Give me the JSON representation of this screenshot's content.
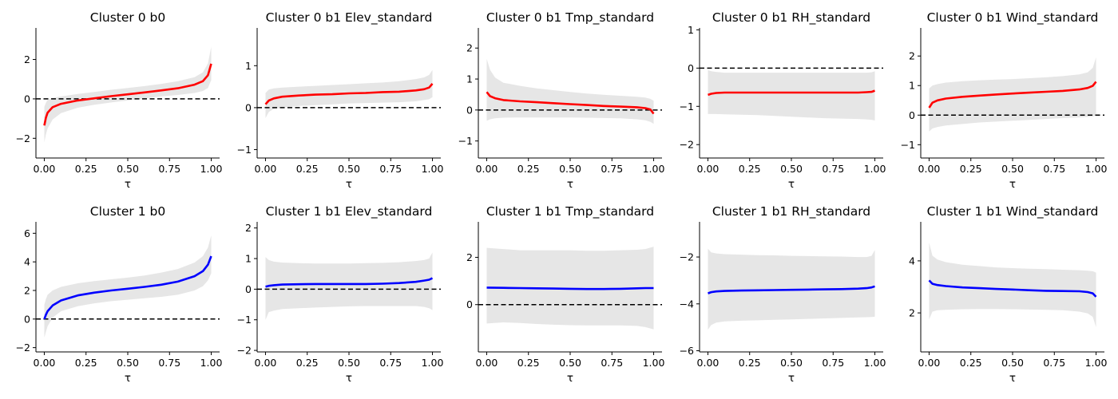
{
  "chart_data": [
    {
      "type": "line",
      "title": "Cluster 0 b0",
      "xlabel": "τ",
      "ylabel": "",
      "color": "#ff0000",
      "xlim": [
        -0.05,
        1.05
      ],
      "ylim": [
        -3.0,
        3.6
      ],
      "yticks": [
        "−2",
        "0",
        "2"
      ],
      "ytick_values": [
        -2,
        0,
        2
      ],
      "xticks": [
        "0.00",
        "0.25",
        "0.50",
        "0.75",
        "1.00"
      ],
      "xtick_values": [
        0,
        0.25,
        0.5,
        0.75,
        1.0
      ],
      "reference_line": 0,
      "x": [
        0,
        0.01,
        0.02,
        0.05,
        0.1,
        0.2,
        0.3,
        0.4,
        0.5,
        0.6,
        0.7,
        0.8,
        0.9,
        0.95,
        0.98,
        1.0
      ],
      "y": [
        -1.35,
        -0.95,
        -0.7,
        -0.42,
        -0.25,
        -0.08,
        0.03,
        0.14,
        0.23,
        0.33,
        0.43,
        0.54,
        0.72,
        0.9,
        1.2,
        1.78
      ],
      "lower": [
        -2.2,
        -1.8,
        -1.5,
        -1.05,
        -0.72,
        -0.45,
        -0.3,
        -0.18,
        -0.08,
        0.02,
        0.12,
        0.2,
        0.3,
        0.4,
        0.55,
        0.95
      ],
      "upper": [
        -0.4,
        -0.2,
        -0.05,
        0.05,
        0.12,
        0.25,
        0.35,
        0.46,
        0.55,
        0.65,
        0.76,
        0.9,
        1.1,
        1.35,
        1.8,
        2.65
      ]
    },
    {
      "type": "line",
      "title": "Cluster 0 b1 Elev_standard",
      "xlabel": "τ",
      "ylabel": "",
      "color": "#ff0000",
      "xlim": [
        -0.05,
        1.05
      ],
      "ylim": [
        -1.2,
        1.9
      ],
      "yticks": [
        "−1",
        "0",
        "1"
      ],
      "ytick_values": [
        -1,
        0,
        1
      ],
      "xticks": [
        "0.00",
        "0.25",
        "0.50",
        "0.75",
        "1.00"
      ],
      "xtick_values": [
        0,
        0.25,
        0.5,
        0.75,
        1.0
      ],
      "reference_line": 0,
      "x": [
        0,
        0.02,
        0.05,
        0.1,
        0.2,
        0.3,
        0.4,
        0.5,
        0.6,
        0.7,
        0.8,
        0.9,
        0.95,
        0.98,
        1.0
      ],
      "y": [
        0.08,
        0.17,
        0.22,
        0.26,
        0.29,
        0.31,
        0.32,
        0.34,
        0.35,
        0.37,
        0.38,
        0.41,
        0.44,
        0.48,
        0.57
      ],
      "lower": [
        -0.25,
        -0.1,
        -0.03,
        0.0,
        0.04,
        0.06,
        0.08,
        0.1,
        0.11,
        0.12,
        0.13,
        0.15,
        0.18,
        0.2,
        0.25
      ],
      "upper": [
        0.35,
        0.43,
        0.46,
        0.48,
        0.5,
        0.52,
        0.54,
        0.56,
        0.58,
        0.6,
        0.63,
        0.68,
        0.72,
        0.78,
        0.9
      ]
    },
    {
      "type": "line",
      "title": "Cluster 0 b1 Tmp_standard",
      "xlabel": "τ",
      "ylabel": "",
      "color": "#ff0000",
      "xlim": [
        -0.05,
        1.05
      ],
      "ylim": [
        -1.55,
        2.65
      ],
      "yticks": [
        "−1",
        "0",
        "1",
        "2"
      ],
      "ytick_values": [
        -1,
        0,
        1,
        2
      ],
      "xticks": [
        "0.00",
        "0.25",
        "0.50",
        "0.75",
        "1.00"
      ],
      "xtick_values": [
        0,
        0.25,
        0.5,
        0.75,
        1.0
      ],
      "reference_line": 0,
      "x": [
        0,
        0.02,
        0.05,
        0.1,
        0.2,
        0.3,
        0.4,
        0.5,
        0.6,
        0.7,
        0.8,
        0.9,
        0.95,
        0.98,
        1.0
      ],
      "y": [
        0.58,
        0.45,
        0.38,
        0.32,
        0.28,
        0.25,
        0.22,
        0.19,
        0.16,
        0.13,
        0.11,
        0.09,
        0.06,
        0.02,
        -0.12
      ],
      "lower": [
        -0.35,
        -0.3,
        -0.27,
        -0.25,
        -0.24,
        -0.24,
        -0.24,
        -0.24,
        -0.25,
        -0.26,
        -0.27,
        -0.3,
        -0.33,
        -0.38,
        -0.45
      ],
      "upper": [
        1.65,
        1.3,
        1.05,
        0.88,
        0.78,
        0.7,
        0.64,
        0.58,
        0.53,
        0.49,
        0.46,
        0.43,
        0.4,
        0.36,
        0.3
      ]
    },
    {
      "type": "line",
      "title": "Cluster 0 b1 RH_standard",
      "xlabel": "τ",
      "ylabel": "",
      "color": "#ff0000",
      "xlim": [
        -0.05,
        1.05
      ],
      "ylim": [
        -2.35,
        1.05
      ],
      "yticks": [
        "−2",
        "−1",
        "0",
        "1"
      ],
      "ytick_values": [
        -2,
        -1,
        0,
        1
      ],
      "xticks": [
        "0.00",
        "0.25",
        "0.50",
        "0.75",
        "1.00"
      ],
      "xtick_values": [
        0,
        0.25,
        0.5,
        0.75,
        1.0
      ],
      "reference_line": 0,
      "x": [
        0,
        0.02,
        0.05,
        0.1,
        0.2,
        0.3,
        0.4,
        0.5,
        0.6,
        0.7,
        0.8,
        0.9,
        0.95,
        0.98,
        1.0
      ],
      "y": [
        -0.7,
        -0.67,
        -0.65,
        -0.64,
        -0.64,
        -0.64,
        -0.64,
        -0.64,
        -0.64,
        -0.64,
        -0.64,
        -0.64,
        -0.63,
        -0.62,
        -0.59
      ],
      "lower": [
        -1.2,
        -1.2,
        -1.2,
        -1.21,
        -1.22,
        -1.23,
        -1.25,
        -1.27,
        -1.29,
        -1.31,
        -1.32,
        -1.33,
        -1.34,
        -1.35,
        -1.37
      ],
      "upper": [
        -0.05,
        -0.08,
        -0.1,
        -0.12,
        -0.12,
        -0.12,
        -0.12,
        -0.12,
        -0.12,
        -0.12,
        -0.12,
        -0.12,
        -0.12,
        -0.11,
        -0.08
      ]
    },
    {
      "type": "line",
      "title": "Cluster 0 b1 Wind_standard",
      "xlabel": "τ",
      "ylabel": "",
      "color": "#ff0000",
      "xlim": [
        -0.05,
        1.05
      ],
      "ylim": [
        -1.45,
        2.95
      ],
      "yticks": [
        "−1",
        "0",
        "1",
        "2"
      ],
      "ytick_values": [
        -1,
        0,
        1,
        2
      ],
      "xticks": [
        "0.00",
        "0.25",
        "0.50",
        "0.75",
        "1.00"
      ],
      "xtick_values": [
        0,
        0.25,
        0.5,
        0.75,
        1.0
      ],
      "reference_line": 0,
      "x": [
        0,
        0.02,
        0.05,
        0.1,
        0.2,
        0.3,
        0.4,
        0.5,
        0.6,
        0.7,
        0.8,
        0.9,
        0.95,
        0.98,
        1.0
      ],
      "y": [
        0.25,
        0.42,
        0.5,
        0.56,
        0.62,
        0.66,
        0.7,
        0.73,
        0.76,
        0.79,
        0.82,
        0.87,
        0.92,
        0.99,
        1.13
      ],
      "lower": [
        -0.55,
        -0.45,
        -0.4,
        -0.35,
        -0.3,
        -0.25,
        -0.22,
        -0.19,
        -0.16,
        -0.13,
        -0.1,
        -0.08,
        -0.06,
        -0.05,
        0.0
      ],
      "upper": [
        0.9,
        1.0,
        1.05,
        1.1,
        1.15,
        1.18,
        1.2,
        1.22,
        1.25,
        1.28,
        1.32,
        1.38,
        1.45,
        1.6,
        1.95
      ]
    },
    {
      "type": "line",
      "title": "Cluster 1 b0",
      "xlabel": "τ",
      "ylabel": "",
      "color": "#0000ff",
      "xlim": [
        -0.05,
        1.05
      ],
      "ylim": [
        -2.3,
        6.8
      ],
      "yticks": [
        "−2",
        "0",
        "2",
        "4",
        "6"
      ],
      "ytick_values": [
        -2,
        0,
        2,
        4,
        6
      ],
      "xticks": [
        "0.00",
        "0.25",
        "0.50",
        "0.75",
        "1.00"
      ],
      "xtick_values": [
        0,
        0.25,
        0.5,
        0.75,
        1.0
      ],
      "reference_line": 0,
      "x": [
        0,
        0.01,
        0.02,
        0.05,
        0.1,
        0.2,
        0.3,
        0.4,
        0.5,
        0.6,
        0.7,
        0.8,
        0.9,
        0.95,
        0.98,
        1.0
      ],
      "y": [
        0.0,
        0.3,
        0.55,
        0.95,
        1.3,
        1.65,
        1.85,
        2.0,
        2.12,
        2.25,
        2.4,
        2.62,
        3.0,
        3.35,
        3.8,
        4.4
      ],
      "lower": [
        -1.3,
        -0.9,
        -0.5,
        0.1,
        0.55,
        0.9,
        1.1,
        1.25,
        1.35,
        1.45,
        1.55,
        1.7,
        2.0,
        2.3,
        2.7,
        3.2
      ],
      "upper": [
        1.0,
        1.4,
        1.7,
        2.0,
        2.25,
        2.5,
        2.65,
        2.78,
        2.9,
        3.05,
        3.25,
        3.5,
        3.95,
        4.4,
        5.0,
        5.85
      ]
    },
    {
      "type": "line",
      "title": "Cluster 1 b1 Elev_standard",
      "xlabel": "τ",
      "ylabel": "",
      "color": "#0000ff",
      "xlim": [
        -0.05,
        1.05
      ],
      "ylim": [
        -2.05,
        2.2
      ],
      "yticks": [
        "−2",
        "−1",
        "0",
        "1",
        "2"
      ],
      "ytick_values": [
        -2,
        -1,
        0,
        1,
        2
      ],
      "xticks": [
        "0.00",
        "0.25",
        "0.50",
        "0.75",
        "1.00"
      ],
      "xtick_values": [
        0,
        0.25,
        0.5,
        0.75,
        1.0
      ],
      "reference_line": 0,
      "x": [
        0,
        0.02,
        0.05,
        0.1,
        0.2,
        0.3,
        0.4,
        0.5,
        0.6,
        0.7,
        0.8,
        0.9,
        0.95,
        0.98,
        1.0
      ],
      "y": [
        0.08,
        0.11,
        0.13,
        0.15,
        0.16,
        0.17,
        0.17,
        0.17,
        0.17,
        0.18,
        0.2,
        0.24,
        0.28,
        0.31,
        0.36
      ],
      "lower": [
        -1.0,
        -0.75,
        -0.7,
        -0.65,
        -0.62,
        -0.6,
        -0.58,
        -0.56,
        -0.55,
        -0.55,
        -0.55,
        -0.55,
        -0.58,
        -0.62,
        -0.68
      ],
      "upper": [
        1.05,
        0.95,
        0.9,
        0.87,
        0.85,
        0.84,
        0.84,
        0.84,
        0.85,
        0.86,
        0.88,
        0.92,
        0.95,
        1.0,
        1.2
      ]
    },
    {
      "type": "line",
      "title": "Cluster 1 b1 Tmp_standard",
      "xlabel": "τ",
      "ylabel": "",
      "color": "#0000ff",
      "xlim": [
        -0.05,
        1.05
      ],
      "ylim": [
        -2.0,
        3.5
      ],
      "yticks": [
        "0",
        "2"
      ],
      "ytick_values": [
        0,
        2
      ],
      "xticks": [
        "0.00",
        "0.25",
        "0.50",
        "0.75",
        "1.00"
      ],
      "xtick_values": [
        0,
        0.25,
        0.5,
        0.75,
        1.0
      ],
      "reference_line": 0,
      "x": [
        0,
        0.1,
        0.2,
        0.3,
        0.4,
        0.5,
        0.6,
        0.7,
        0.8,
        0.9,
        0.95,
        1.0
      ],
      "y": [
        0.72,
        0.71,
        0.7,
        0.69,
        0.68,
        0.67,
        0.66,
        0.66,
        0.67,
        0.69,
        0.7,
        0.7
      ],
      "lower": [
        -0.8,
        -0.75,
        -0.78,
        -0.82,
        -0.85,
        -0.87,
        -0.88,
        -0.88,
        -0.88,
        -0.9,
        -0.95,
        -1.05
      ],
      "upper": [
        2.4,
        2.35,
        2.3,
        2.3,
        2.3,
        2.3,
        2.28,
        2.28,
        2.3,
        2.32,
        2.35,
        2.45
      ]
    },
    {
      "type": "line",
      "title": "Cluster 1 b1 RH_standard",
      "xlabel": "τ",
      "ylabel": "",
      "color": "#0000ff",
      "xlim": [
        -0.05,
        1.05
      ],
      "ylim": [
        -6.05,
        -0.5
      ],
      "yticks": [
        "−6",
        "−4",
        "−2"
      ],
      "ytick_values": [
        -6,
        -4,
        -2
      ],
      "xticks": [
        "0.00",
        "0.25",
        "0.50",
        "0.75",
        "1.00"
      ],
      "xtick_values": [
        0,
        0.25,
        0.5,
        0.75,
        1.0
      ],
      "reference_line": null,
      "x": [
        0,
        0.02,
        0.05,
        0.1,
        0.2,
        0.3,
        0.4,
        0.5,
        0.6,
        0.7,
        0.8,
        0.9,
        0.95,
        0.98,
        1.0
      ],
      "y": [
        -3.55,
        -3.5,
        -3.47,
        -3.45,
        -3.43,
        -3.42,
        -3.41,
        -3.4,
        -3.39,
        -3.38,
        -3.37,
        -3.35,
        -3.33,
        -3.3,
        -3.25
      ],
      "lower": [
        -5.1,
        -4.9,
        -4.8,
        -4.75,
        -4.72,
        -4.7,
        -4.68,
        -4.66,
        -4.64,
        -4.62,
        -4.6,
        -4.58,
        -4.57,
        -4.56,
        -4.55
      ],
      "upper": [
        -1.65,
        -1.8,
        -1.85,
        -1.88,
        -1.9,
        -1.92,
        -1.93,
        -1.95,
        -1.96,
        -1.97,
        -1.98,
        -2.0,
        -2.0,
        -1.95,
        -1.7
      ]
    },
    {
      "type": "line",
      "title": "Cluster 1 b1 Wind_standard",
      "xlabel": "τ",
      "ylabel": "",
      "color": "#0000ff",
      "xlim": [
        -0.05,
        1.05
      ],
      "ylim": [
        0.5,
        5.5
      ],
      "yticks": [
        "2",
        "4"
      ],
      "ytick_values": [
        2,
        4
      ],
      "xticks": [
        "0.00",
        "0.25",
        "0.50",
        "0.75",
        "1.00"
      ],
      "xtick_values": [
        0,
        0.25,
        0.5,
        0.75,
        1.0
      ],
      "reference_line": null,
      "x": [
        0,
        0.02,
        0.05,
        0.1,
        0.2,
        0.3,
        0.4,
        0.5,
        0.6,
        0.7,
        0.8,
        0.9,
        0.95,
        0.98,
        1.0
      ],
      "y": [
        3.25,
        3.12,
        3.07,
        3.03,
        2.98,
        2.95,
        2.92,
        2.9,
        2.87,
        2.85,
        2.84,
        2.83,
        2.8,
        2.75,
        2.62
      ],
      "lower": [
        1.75,
        2.05,
        2.1,
        2.12,
        2.14,
        2.15,
        2.15,
        2.14,
        2.13,
        2.12,
        2.1,
        2.05,
        1.98,
        1.85,
        1.45
      ],
      "upper": [
        4.7,
        4.2,
        4.05,
        3.95,
        3.85,
        3.8,
        3.75,
        3.72,
        3.7,
        3.68,
        3.66,
        3.64,
        3.62,
        3.6,
        3.55
      ]
    }
  ]
}
